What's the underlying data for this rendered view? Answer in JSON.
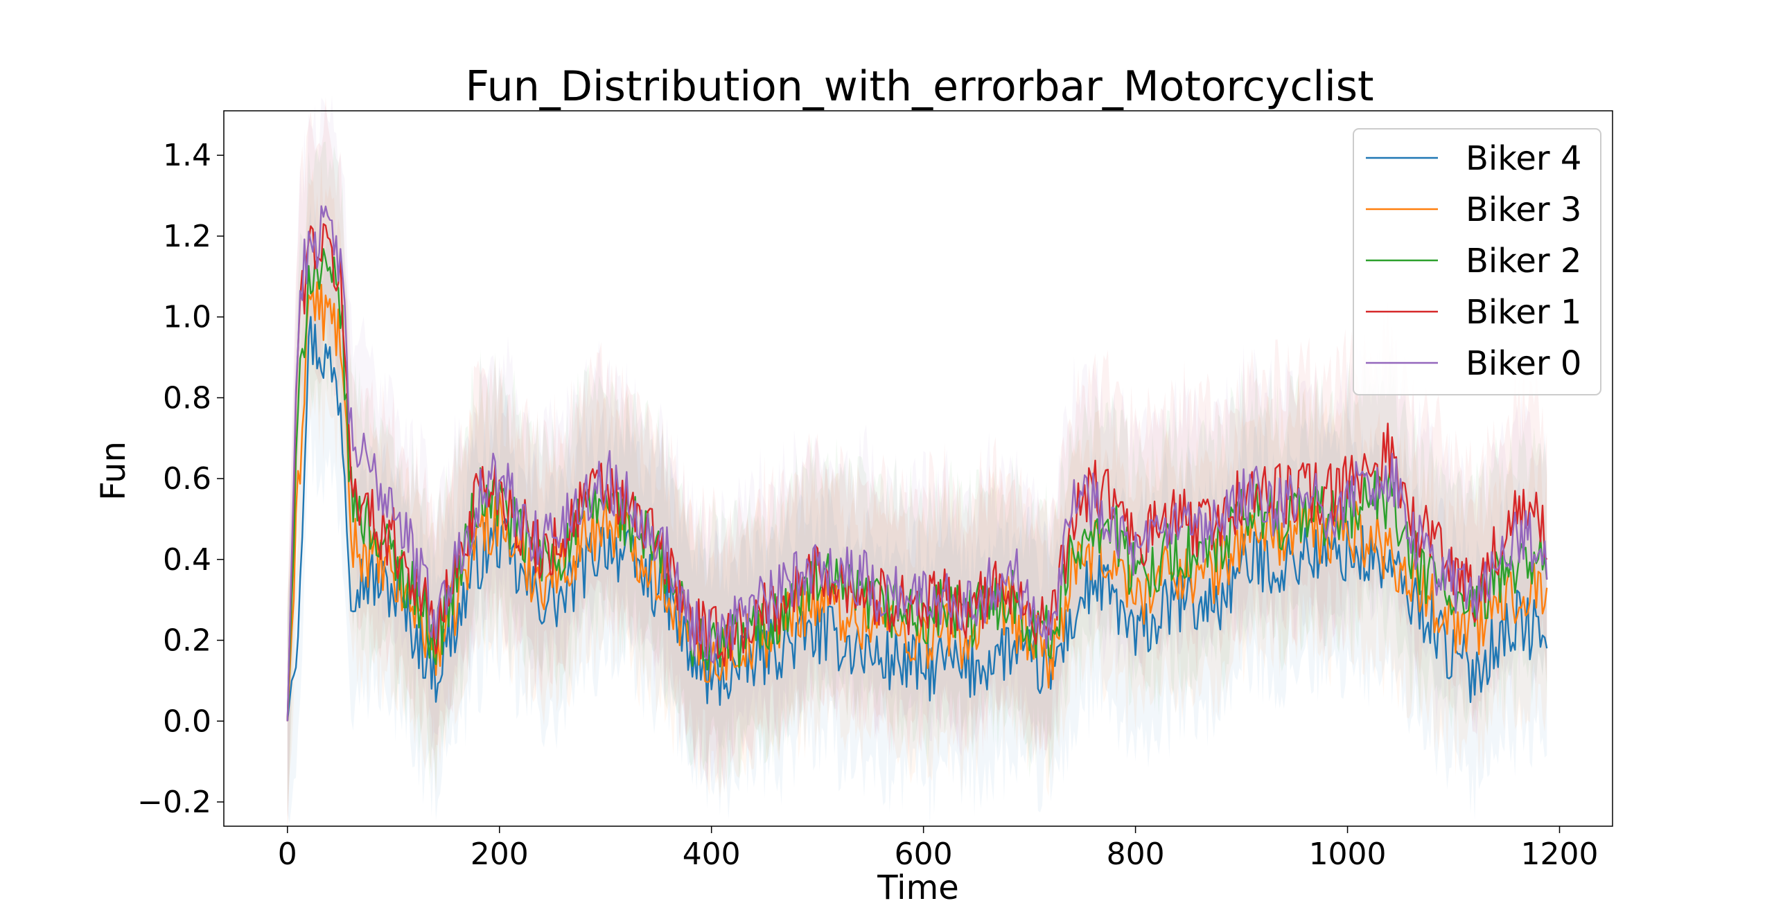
{
  "chart_data": {
    "type": "line",
    "title": "Fun_Distribution_with_errorbar_Motorcyclist",
    "xlabel": "Time",
    "ylabel": "Fun",
    "xlim": [
      -60,
      1250
    ],
    "ylim": [
      -0.26,
      1.51
    ],
    "xticks": [
      0,
      200,
      400,
      600,
      800,
      1000,
      1200
    ],
    "yticks": [
      -0.2,
      0.0,
      0.2,
      0.4,
      0.6,
      0.8,
      1.0,
      1.2,
      1.4
    ],
    "xtick_labels": [
      "0",
      "200",
      "400",
      "600",
      "800",
      "1000",
      "1200"
    ],
    "ytick_labels": [
      "−0.2",
      "0.0",
      "0.2",
      "0.4",
      "0.6",
      "0.8",
      "1.0",
      "1.2",
      "1.4"
    ],
    "grid": false,
    "legend_position": "top-right",
    "error_band": "shaded ± std per series (faint)",
    "series": [
      {
        "name": "Biker 4",
        "color": "#1f77b4",
        "x": [
          0,
          10,
          20,
          30,
          40,
          50,
          60,
          80,
          100,
          120,
          140,
          160,
          180,
          200,
          220,
          240,
          260,
          280,
          300,
          320,
          340,
          360,
          380,
          400,
          420,
          440,
          460,
          480,
          500,
          520,
          540,
          560,
          580,
          600,
          620,
          640,
          660,
          680,
          700,
          720,
          740,
          760,
          780,
          800,
          820,
          840,
          860,
          880,
          900,
          920,
          940,
          960,
          980,
          1000,
          1020,
          1040,
          1060,
          1080,
          1100,
          1120,
          1140,
          1160,
          1180,
          1188
        ],
        "y": [
          0.0,
          0.25,
          0.95,
          0.92,
          0.88,
          0.8,
          0.35,
          0.35,
          0.32,
          0.22,
          0.12,
          0.25,
          0.4,
          0.45,
          0.35,
          0.3,
          0.3,
          0.38,
          0.45,
          0.4,
          0.35,
          0.3,
          0.15,
          0.1,
          0.12,
          0.15,
          0.18,
          0.2,
          0.22,
          0.2,
          0.18,
          0.15,
          0.15,
          0.12,
          0.15,
          0.12,
          0.15,
          0.18,
          0.15,
          0.12,
          0.25,
          0.35,
          0.3,
          0.2,
          0.25,
          0.3,
          0.28,
          0.3,
          0.38,
          0.4,
          0.38,
          0.42,
          0.4,
          0.42,
          0.4,
          0.38,
          0.3,
          0.25,
          0.15,
          0.12,
          0.2,
          0.25,
          0.22,
          0.18
        ]
      },
      {
        "name": "Biker 3",
        "color": "#ff7f0e",
        "x": [
          0,
          10,
          20,
          30,
          40,
          50,
          60,
          80,
          100,
          120,
          140,
          160,
          180,
          200,
          220,
          240,
          260,
          280,
          300,
          320,
          340,
          360,
          380,
          400,
          420,
          440,
          460,
          480,
          500,
          520,
          540,
          560,
          580,
          600,
          620,
          640,
          660,
          680,
          700,
          720,
          740,
          760,
          780,
          800,
          820,
          840,
          860,
          880,
          900,
          920,
          940,
          960,
          980,
          1000,
          1020,
          1040,
          1060,
          1080,
          1100,
          1120,
          1140,
          1160,
          1180,
          1188
        ],
        "y": [
          0.0,
          0.55,
          1.05,
          1.02,
          1.0,
          0.95,
          0.45,
          0.4,
          0.35,
          0.28,
          0.18,
          0.3,
          0.48,
          0.5,
          0.4,
          0.35,
          0.38,
          0.45,
          0.5,
          0.45,
          0.4,
          0.32,
          0.2,
          0.15,
          0.18,
          0.2,
          0.22,
          0.28,
          0.3,
          0.28,
          0.25,
          0.25,
          0.22,
          0.2,
          0.22,
          0.2,
          0.25,
          0.28,
          0.2,
          0.15,
          0.35,
          0.42,
          0.4,
          0.3,
          0.35,
          0.38,
          0.35,
          0.38,
          0.45,
          0.48,
          0.45,
          0.48,
          0.45,
          0.48,
          0.45,
          0.42,
          0.35,
          0.3,
          0.25,
          0.22,
          0.28,
          0.32,
          0.35,
          0.33
        ]
      },
      {
        "name": "Biker 2",
        "color": "#2ca02c",
        "x": [
          0,
          10,
          20,
          30,
          40,
          50,
          60,
          80,
          100,
          120,
          140,
          160,
          180,
          200,
          220,
          240,
          260,
          280,
          300,
          320,
          340,
          360,
          380,
          400,
          420,
          440,
          460,
          480,
          500,
          520,
          540,
          560,
          580,
          600,
          620,
          640,
          660,
          680,
          700,
          720,
          740,
          760,
          780,
          800,
          820,
          840,
          860,
          880,
          900,
          920,
          940,
          960,
          980,
          1000,
          1020,
          1040,
          1060,
          1080,
          1100,
          1120,
          1140,
          1160,
          1180,
          1188
        ],
        "y": [
          0.0,
          0.75,
          1.12,
          1.1,
          1.08,
          1.05,
          0.55,
          0.48,
          0.4,
          0.32,
          0.2,
          0.35,
          0.55,
          0.55,
          0.45,
          0.4,
          0.42,
          0.5,
          0.55,
          0.5,
          0.45,
          0.35,
          0.22,
          0.18,
          0.2,
          0.22,
          0.25,
          0.3,
          0.35,
          0.32,
          0.3,
          0.28,
          0.28,
          0.25,
          0.28,
          0.25,
          0.28,
          0.32,
          0.25,
          0.2,
          0.4,
          0.5,
          0.48,
          0.35,
          0.4,
          0.42,
          0.4,
          0.42,
          0.5,
          0.52,
          0.5,
          0.52,
          0.5,
          0.52,
          0.55,
          0.55,
          0.4,
          0.35,
          0.3,
          0.25,
          0.35,
          0.4,
          0.4,
          0.35
        ]
      },
      {
        "name": "Biker 1",
        "color": "#d62728",
        "x": [
          0,
          10,
          20,
          30,
          40,
          50,
          60,
          80,
          100,
          120,
          140,
          160,
          180,
          200,
          220,
          240,
          260,
          280,
          300,
          320,
          340,
          360,
          380,
          400,
          420,
          440,
          460,
          480,
          500,
          520,
          540,
          560,
          580,
          600,
          620,
          640,
          660,
          680,
          700,
          720,
          740,
          760,
          780,
          800,
          820,
          840,
          860,
          880,
          900,
          920,
          940,
          960,
          980,
          1000,
          1020,
          1040,
          1060,
          1080,
          1100,
          1120,
          1140,
          1160,
          1180,
          1188
        ],
        "y": [
          0.0,
          0.95,
          1.18,
          1.18,
          1.15,
          1.1,
          0.6,
          0.5,
          0.45,
          0.35,
          0.22,
          0.38,
          0.58,
          0.58,
          0.48,
          0.42,
          0.45,
          0.55,
          0.58,
          0.52,
          0.48,
          0.38,
          0.25,
          0.2,
          0.22,
          0.25,
          0.28,
          0.32,
          0.38,
          0.35,
          0.32,
          0.3,
          0.3,
          0.28,
          0.3,
          0.28,
          0.3,
          0.35,
          0.28,
          0.22,
          0.5,
          0.58,
          0.55,
          0.42,
          0.48,
          0.5,
          0.48,
          0.5,
          0.55,
          0.58,
          0.55,
          0.58,
          0.55,
          0.58,
          0.62,
          0.68,
          0.5,
          0.45,
          0.38,
          0.32,
          0.42,
          0.5,
          0.52,
          0.4
        ]
      },
      {
        "name": "Biker 0",
        "color": "#9467bd",
        "x": [
          0,
          10,
          20,
          30,
          40,
          50,
          60,
          80,
          100,
          120,
          140,
          160,
          180,
          200,
          220,
          240,
          260,
          280,
          300,
          320,
          340,
          360,
          380,
          400,
          420,
          440,
          460,
          480,
          500,
          520,
          540,
          560,
          580,
          600,
          620,
          640,
          660,
          680,
          700,
          720,
          740,
          760,
          780,
          800,
          820,
          840,
          860,
          880,
          900,
          920,
          940,
          960,
          980,
          1000,
          1020,
          1040,
          1060,
          1080,
          1100,
          1120,
          1140,
          1160,
          1180,
          1188
        ],
        "y": [
          0.0,
          1.0,
          1.2,
          1.2,
          1.2,
          1.15,
          0.7,
          0.6,
          0.55,
          0.4,
          0.25,
          0.4,
          0.55,
          0.6,
          0.5,
          0.45,
          0.48,
          0.55,
          0.6,
          0.55,
          0.5,
          0.4,
          0.25,
          0.2,
          0.25,
          0.28,
          0.3,
          0.35,
          0.4,
          0.38,
          0.35,
          0.32,
          0.32,
          0.3,
          0.32,
          0.3,
          0.32,
          0.38,
          0.3,
          0.25,
          0.55,
          0.55,
          0.5,
          0.4,
          0.45,
          0.48,
          0.45,
          0.48,
          0.55,
          0.55,
          0.52,
          0.55,
          0.52,
          0.55,
          0.58,
          0.62,
          0.45,
          0.4,
          0.35,
          0.3,
          0.38,
          0.45,
          0.45,
          0.35
        ]
      }
    ]
  }
}
